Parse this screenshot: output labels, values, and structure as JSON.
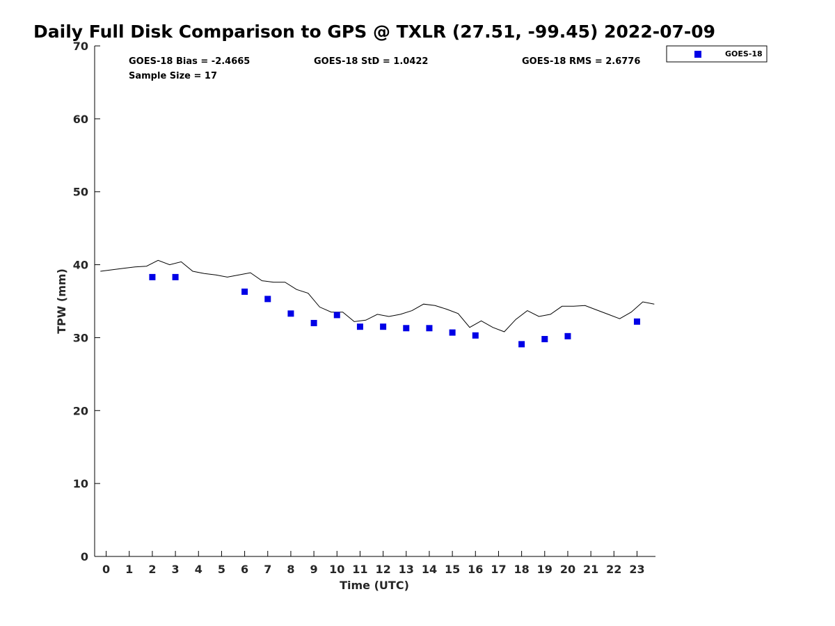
{
  "chart_data": {
    "type": "scatter",
    "title": "Daily Full Disk Comparison to GPS @ TXLR (27.51, -99.45) 2022-07-09",
    "xlabel": "Time (UTC)",
    "ylabel": "TPW (mm)",
    "xlim": [
      -0.5,
      23.8
    ],
    "ylim": [
      0,
      70
    ],
    "x_ticks": [
      "0",
      "1",
      "2",
      "3",
      "4",
      "5",
      "6",
      "7",
      "8",
      "9",
      "10",
      "11",
      "12",
      "13",
      "14",
      "15",
      "16",
      "17",
      "18",
      "19",
      "20",
      "21",
      "22",
      "23"
    ],
    "y_ticks": [
      "0",
      "10",
      "20",
      "30",
      "40",
      "50",
      "60",
      "70"
    ],
    "grid": false,
    "legend_position": "top-right",
    "stats": {
      "bias": "GOES-18 Bias = -2.4665",
      "std": "GOES-18 StD = 1.0422",
      "rms": "GOES-18 RMS = 2.6776",
      "sample": "Sample Size = 17"
    },
    "series": [
      {
        "name": "GOES-18",
        "type": "scatter",
        "color": "#0000e6",
        "x": [
          2,
          3,
          6,
          7,
          8,
          9,
          10,
          11,
          12,
          13,
          14,
          15,
          16,
          18,
          19,
          20,
          23
        ],
        "y": [
          38.3,
          38.3,
          36.3,
          35.3,
          33.3,
          32.0,
          33.1,
          31.5,
          31.5,
          31.3,
          31.3,
          30.7,
          30.3,
          29.1,
          29.8,
          30.2,
          32.2
        ]
      },
      {
        "type": "line",
        "color": "#000000",
        "x": [
          -0.25,
          0.25,
          0.75,
          1.25,
          1.75,
          2.25,
          2.75,
          3.25,
          3.75,
          4.25,
          4.75,
          5.25,
          5.75,
          6.25,
          6.75,
          7.25,
          7.75,
          8.25,
          8.75,
          9.25,
          9.75,
          10.25,
          10.75,
          11.25,
          11.75,
          12.25,
          12.75,
          13.25,
          13.75,
          14.25,
          14.75,
          15.25,
          15.75,
          16.25,
          16.75,
          17.25,
          17.75,
          18.25,
          18.75,
          19.25,
          19.75,
          20.25,
          20.75,
          21.25,
          21.75,
          22.25,
          22.75,
          23.25,
          23.75
        ],
        "y": [
          39.1,
          39.3,
          39.5,
          39.7,
          39.8,
          40.6,
          40.0,
          40.4,
          39.1,
          38.8,
          38.6,
          38.3,
          38.6,
          38.9,
          37.8,
          37.6,
          37.6,
          36.6,
          36.1,
          34.2,
          33.5,
          33.5,
          32.2,
          32.4,
          33.2,
          32.9,
          33.2,
          33.7,
          34.6,
          34.4,
          33.9,
          33.3,
          31.4,
          32.3,
          31.4,
          30.8,
          32.5,
          33.7,
          32.9,
          33.2,
          34.3,
          34.3,
          34.4,
          33.8,
          33.2,
          32.6,
          33.5,
          34.9,
          34.6
        ]
      }
    ]
  }
}
